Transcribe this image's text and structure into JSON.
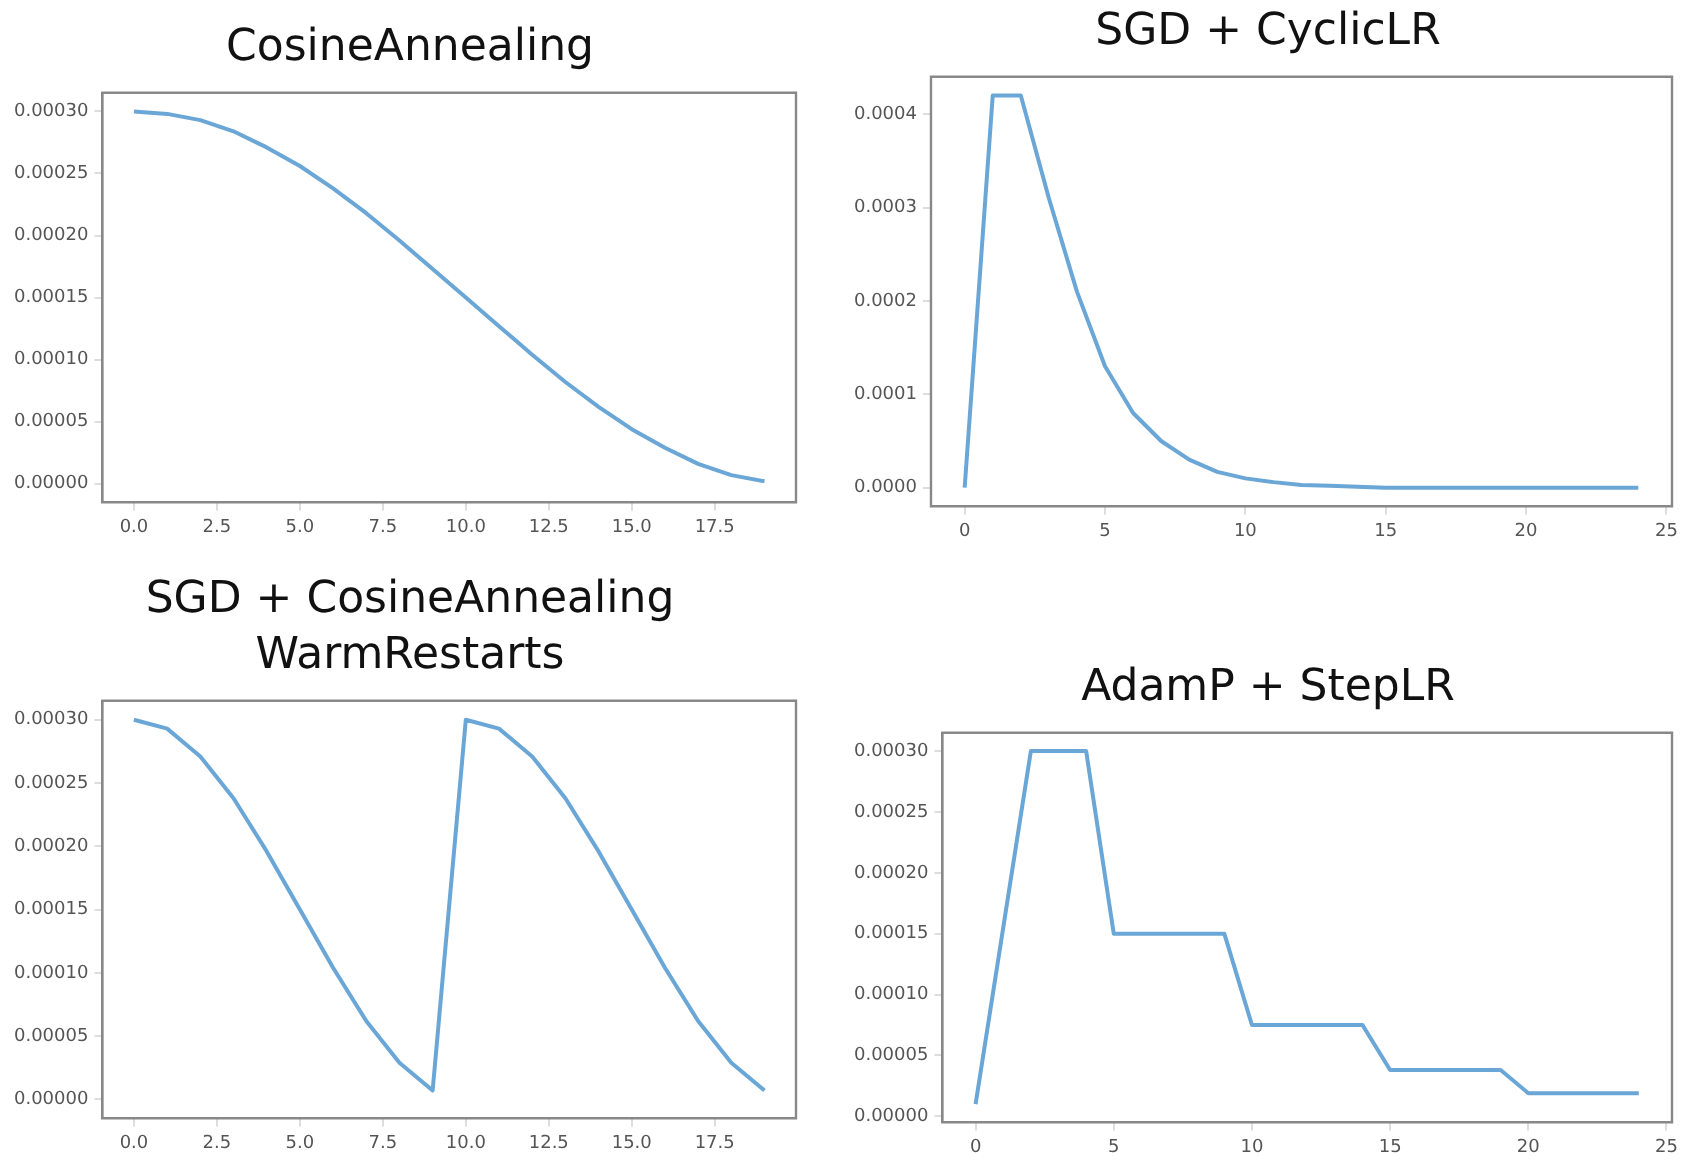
{
  "chart_data": [
    {
      "type": "line",
      "title": "CosineAnnealing",
      "x": [
        0,
        1,
        2,
        3,
        4,
        5,
        6,
        7,
        8,
        9,
        10,
        11,
        12,
        13,
        14,
        15,
        16,
        17,
        18,
        19
      ],
      "series": [
        {
          "color": "#6aa6d6",
          "values": [
            0.0003,
            0.000298,
            0.000293,
            0.000284,
            0.000271,
            0.000256,
            0.000238,
            0.000218,
            0.000196,
            0.000173,
            0.00015,
            0.000127,
            0.000104,
            8.2e-05,
            6.2e-05,
            4.4e-05,
            2.9e-05,
            1.6e-05,
            7e-06,
            2e-06
          ]
        }
      ],
      "xlim": [
        -0.95,
        19.95
      ],
      "xticks": [
        {
          "value": 0,
          "label": "0.0"
        },
        {
          "value": 2.5,
          "label": "2.5"
        },
        {
          "value": 5,
          "label": "5.0"
        },
        {
          "value": 7.5,
          "label": "7.5"
        },
        {
          "value": 10,
          "label": "10.0"
        },
        {
          "value": 12.5,
          "label": "12.5"
        },
        {
          "value": 15,
          "label": "15.0"
        },
        {
          "value": 17.5,
          "label": "17.5"
        }
      ],
      "ylim": [
        -1.5e-05,
        0.000315
      ],
      "yticks": [
        {
          "value": 0,
          "label": "0.00000"
        },
        {
          "value": 5e-05,
          "label": "0.00005"
        },
        {
          "value": 0.0001,
          "label": "0.00010"
        },
        {
          "value": 0.00015,
          "label": "0.00015"
        },
        {
          "value": 0.0002,
          "label": "0.00020"
        },
        {
          "value": 0.00025,
          "label": "0.00025"
        },
        {
          "value": 0.0003,
          "label": "0.00030"
        }
      ],
      "grid": false,
      "legend": false,
      "marker": "none",
      "line_style": "solid"
    },
    {
      "type": "line",
      "title": "SGD + CyclicLR",
      "x": [
        0,
        1,
        2,
        3,
        4,
        5,
        6,
        7,
        8,
        9,
        10,
        11,
        12,
        13,
        14,
        15,
        16,
        17,
        18,
        19,
        20,
        21,
        22,
        23,
        24
      ],
      "series": [
        {
          "color": "#6aa6d6",
          "values": [
            0,
            0.00042,
            0.00042,
            0.00031,
            0.00021,
            0.00013,
            8e-05,
            5e-05,
            3e-05,
            1.7e-05,
            1e-05,
            6e-06,
            3e-06,
            2e-06,
            1e-06,
            0,
            0,
            0,
            0,
            0,
            0,
            0,
            0,
            0,
            0
          ]
        }
      ],
      "xlim": [
        -1.2,
        25.2
      ],
      "xticks": [
        0,
        5,
        10,
        15,
        20,
        25
      ],
      "ylim": [
        -2e-05,
        0.00044
      ],
      "yticks": [
        {
          "value": 0,
          "label": "0.0000"
        },
        {
          "value": 0.0001,
          "label": "0.0001"
        },
        {
          "value": 0.0002,
          "label": "0.0002"
        },
        {
          "value": 0.0003,
          "label": "0.0003"
        },
        {
          "value": 0.0004,
          "label": "0.0004"
        }
      ],
      "grid": false,
      "legend": false,
      "marker": "none",
      "line_style": "solid"
    },
    {
      "type": "line",
      "title": "SGD + CosineAnnealing WarmRestarts",
      "x": [
        0,
        1,
        2,
        3,
        4,
        5,
        6,
        7,
        8,
        9,
        10,
        11,
        12,
        13,
        14,
        15,
        16,
        17,
        18,
        19
      ],
      "series": [
        {
          "color": "#6aa6d6",
          "values": [
            0.0003,
            0.000293,
            0.000271,
            0.000238,
            0.000196,
            0.00015,
            0.000104,
            6.2e-05,
            2.9e-05,
            7e-06,
            0.0003,
            0.000293,
            0.000271,
            0.000238,
            0.000196,
            0.00015,
            0.000104,
            6.2e-05,
            2.9e-05,
            7e-06
          ]
        }
      ],
      "xlim": [
        -0.95,
        19.95
      ],
      "xticks": [
        {
          "value": 0,
          "label": "0.0"
        },
        {
          "value": 2.5,
          "label": "2.5"
        },
        {
          "value": 5,
          "label": "5.0"
        },
        {
          "value": 7.5,
          "label": "7.5"
        },
        {
          "value": 10,
          "label": "10.0"
        },
        {
          "value": 12.5,
          "label": "12.5"
        },
        {
          "value": 15,
          "label": "15.0"
        },
        {
          "value": 17.5,
          "label": "17.5"
        }
      ],
      "ylim": [
        -1.5e-05,
        0.000315
      ],
      "yticks": [
        {
          "value": 0,
          "label": "0.00000"
        },
        {
          "value": 5e-05,
          "label": "0.00005"
        },
        {
          "value": 0.0001,
          "label": "0.00010"
        },
        {
          "value": 0.00015,
          "label": "0.00015"
        },
        {
          "value": 0.0002,
          "label": "0.00020"
        },
        {
          "value": 0.00025,
          "label": "0.00025"
        },
        {
          "value": 0.0003,
          "label": "0.00030"
        }
      ],
      "grid": false,
      "legend": false,
      "marker": "none",
      "line_style": "solid"
    },
    {
      "type": "line",
      "title": "AdamP + StepLR",
      "x": [
        0,
        1,
        2,
        3,
        4,
        5,
        6,
        7,
        8,
        9,
        10,
        11,
        12,
        13,
        14,
        15,
        16,
        17,
        18,
        19,
        20,
        21,
        22,
        23,
        24
      ],
      "series": [
        {
          "color": "#6aa6d6",
          "values": [
            1e-05,
            0.000155,
            0.0003,
            0.0003,
            0.0003,
            0.00015,
            0.00015,
            0.00015,
            0.00015,
            0.00015,
            7.5e-05,
            7.5e-05,
            7.5e-05,
            7.5e-05,
            7.5e-05,
            3.8e-05,
            3.8e-05,
            3.8e-05,
            3.8e-05,
            3.8e-05,
            1.9e-05,
            1.9e-05,
            1.9e-05,
            1.9e-05,
            1.9e-05
          ]
        }
      ],
      "xlim": [
        -1.2,
        25.2
      ],
      "xticks": [
        0,
        5,
        10,
        15,
        20,
        25
      ],
      "ylim": [
        -5e-06,
        0.000315
      ],
      "yticks": [
        {
          "value": 0,
          "label": "0.00000"
        },
        {
          "value": 5e-05,
          "label": "0.00005"
        },
        {
          "value": 0.0001,
          "label": "0.00010"
        },
        {
          "value": 0.00015,
          "label": "0.00015"
        },
        {
          "value": 0.0002,
          "label": "0.00020"
        },
        {
          "value": 0.00025,
          "label": "0.00025"
        },
        {
          "value": 0.0003,
          "label": "0.00030"
        }
      ],
      "grid": false,
      "legend": false,
      "marker": "none",
      "line_style": "solid"
    }
  ]
}
